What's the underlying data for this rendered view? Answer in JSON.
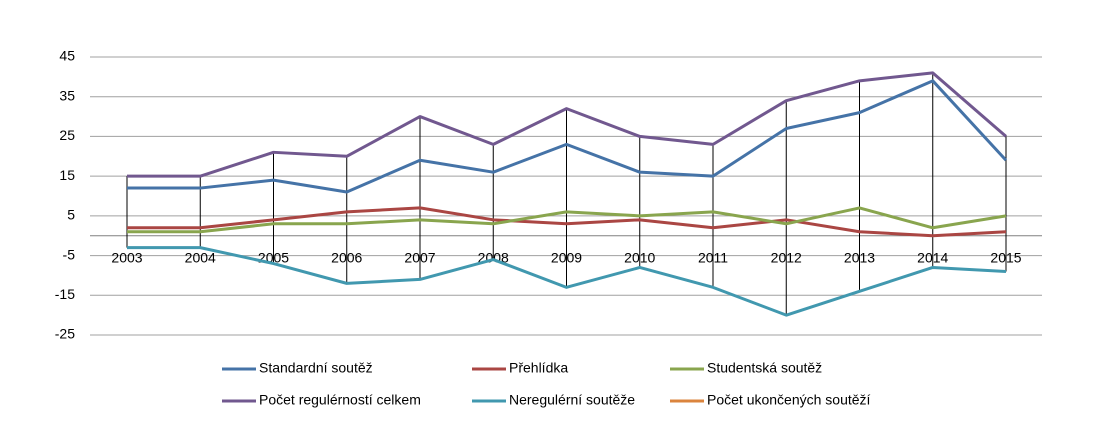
{
  "chart_data": {
    "type": "line",
    "categories": [
      "2003",
      "2004",
      "2005",
      "2006",
      "2007",
      "2008",
      "2009",
      "2010",
      "2011",
      "2012",
      "2013",
      "2014",
      "2015"
    ],
    "series": [
      {
        "name": "Standardní soutěž",
        "color": "#4573a7",
        "values": [
          12,
          12,
          14,
          11,
          19,
          16,
          23,
          16,
          15,
          27,
          31,
          39,
          19
        ]
      },
      {
        "name": "Přehlídka",
        "color": "#aa4643",
        "values": [
          2,
          2,
          4,
          6,
          7,
          4,
          3,
          4,
          2,
          4,
          1,
          0,
          1
        ]
      },
      {
        "name": "Studentská soutěž",
        "color": "#89a54e",
        "values": [
          1,
          1,
          3,
          3,
          4,
          3,
          6,
          5,
          6,
          3,
          7,
          2,
          5
        ]
      },
      {
        "name": "Počet regulérností celkem",
        "color": "#71588f",
        "values": [
          15,
          15,
          21,
          20,
          30,
          23,
          32,
          25,
          23,
          34,
          39,
          41,
          25
        ]
      },
      {
        "name": "Neregulérní soutěže",
        "color": "#4198af",
        "values": [
          -3,
          -3,
          -7,
          -12,
          -11,
          -6,
          -13,
          -8,
          -13,
          -20,
          -14,
          -8,
          -9
        ]
      },
      {
        "name": "Počet ukončených soutěží",
        "color": "#db843d",
        "values": [
          null,
          null,
          null,
          null,
          null,
          null,
          null,
          null,
          null,
          null,
          null,
          null,
          null
        ]
      }
    ],
    "ylim": [
      -25,
      45
    ],
    "yticks": [
      -25,
      -15,
      -5,
      5,
      15,
      25,
      35,
      45
    ],
    "grid": true,
    "high_low_lines": true
  }
}
